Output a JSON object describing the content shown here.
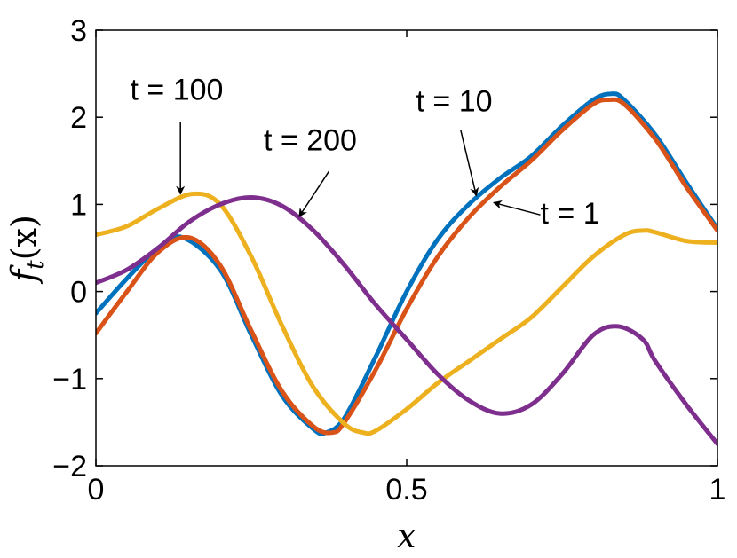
{
  "chart_data": {
    "type": "line",
    "title": "",
    "xlabel": "x",
    "ylabel_main": "f",
    "ylabel_sub": "t",
    "ylabel_arg": "(x)",
    "xlim": [
      0,
      1
    ],
    "ylim": [
      -2,
      3
    ],
    "xticks": [
      0,
      0.5,
      1
    ],
    "xtick_labels": [
      "0",
      "0.5",
      "1"
    ],
    "yticks": [
      -2,
      -1,
      0,
      1,
      2,
      3
    ],
    "ytick_labels": [
      "−2",
      "−1",
      "0",
      "1",
      "2",
      "3"
    ],
    "grid": false,
    "legend": "none",
    "series": [
      {
        "color": "#0072BD",
        "x": [
          0,
          0.05,
          0.1,
          0.14,
          0.2,
          0.25,
          0.3,
          0.35,
          0.37,
          0.4,
          0.45,
          0.5,
          0.55,
          0.6,
          0.65,
          0.7,
          0.75,
          0.8,
          0.83,
          0.85,
          0.9,
          0.95,
          1.0
        ],
        "y": [
          -0.25,
          0.15,
          0.5,
          0.62,
          0.25,
          -0.5,
          -1.2,
          -1.58,
          -1.62,
          -1.45,
          -0.75,
          0.0,
          0.6,
          1.0,
          1.3,
          1.55,
          1.9,
          2.2,
          2.27,
          2.2,
          1.8,
          1.25,
          0.72
        ]
      },
      {
        "color": "#D95319",
        "x": [
          0,
          0.05,
          0.1,
          0.15,
          0.2,
          0.25,
          0.3,
          0.35,
          0.38,
          0.4,
          0.45,
          0.5,
          0.55,
          0.6,
          0.65,
          0.7,
          0.75,
          0.8,
          0.825,
          0.85,
          0.9,
          0.95,
          1.0
        ],
        "y": [
          -0.48,
          0.0,
          0.45,
          0.62,
          0.3,
          -0.45,
          -1.15,
          -1.55,
          -1.62,
          -1.5,
          -0.9,
          -0.2,
          0.4,
          0.85,
          1.2,
          1.5,
          1.85,
          2.15,
          2.2,
          2.15,
          1.75,
          1.2,
          0.7
        ]
      },
      {
        "color": "#EDB120",
        "x": [
          0,
          0.05,
          0.1,
          0.155,
          0.2,
          0.25,
          0.3,
          0.35,
          0.4,
          0.43,
          0.45,
          0.5,
          0.55,
          0.6,
          0.65,
          0.7,
          0.75,
          0.8,
          0.85,
          0.88,
          0.9,
          0.95,
          1.0
        ],
        "y": [
          0.65,
          0.75,
          0.95,
          1.12,
          1.0,
          0.4,
          -0.4,
          -1.1,
          -1.52,
          -1.62,
          -1.6,
          -1.35,
          -1.05,
          -0.8,
          -0.55,
          -0.3,
          0.05,
          0.4,
          0.65,
          0.7,
          0.68,
          0.58,
          0.56
        ]
      },
      {
        "color": "#7E2F8E",
        "x": [
          0,
          0.05,
          0.1,
          0.15,
          0.2,
          0.25,
          0.3,
          0.35,
          0.4,
          0.45,
          0.5,
          0.55,
          0.6,
          0.65,
          0.7,
          0.75,
          0.8,
          0.84,
          0.88,
          0.9,
          0.95,
          1.0
        ],
        "y": [
          0.1,
          0.25,
          0.5,
          0.8,
          1.0,
          1.08,
          0.98,
          0.7,
          0.3,
          -0.15,
          -0.55,
          -0.95,
          -1.25,
          -1.4,
          -1.3,
          -0.95,
          -0.5,
          -0.4,
          -0.55,
          -0.8,
          -1.3,
          -1.75
        ]
      }
    ],
    "annotations": [
      {
        "text": "t = 100",
        "text_x": 0.055,
        "text_y": 2.2,
        "arrow_from": [
          0.136,
          1.95
        ],
        "arrow_to": [
          0.136,
          1.12
        ]
      },
      {
        "text": "t = 200",
        "text_x": 0.27,
        "text_y": 1.62,
        "arrow_from": [
          0.375,
          1.38
        ],
        "arrow_to": [
          0.327,
          0.86
        ]
      },
      {
        "text": "t = 10",
        "text_x": 0.515,
        "text_y": 2.07,
        "arrow_from": [
          0.587,
          1.85
        ],
        "arrow_to": [
          0.612,
          1.1
        ]
      },
      {
        "text": "t = 1",
        "text_x": 0.715,
        "text_y": 0.78,
        "arrow_from": [
          0.715,
          0.88
        ],
        "arrow_to": [
          0.64,
          1.02
        ]
      }
    ]
  }
}
